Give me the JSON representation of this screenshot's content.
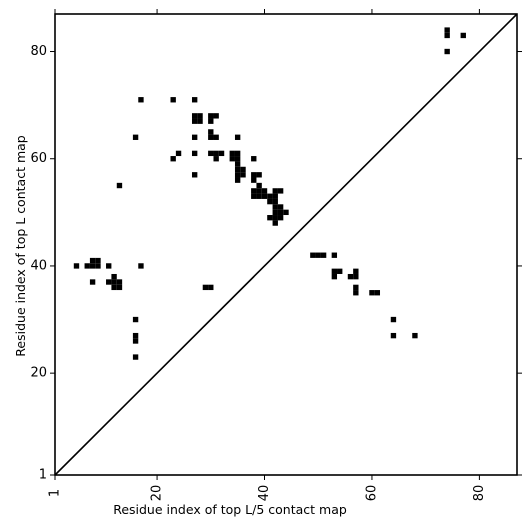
{
  "chart_data": {
    "type": "scatter",
    "title": "",
    "xlabel": "Residue index of top L/5 contact map",
    "ylabel": "Residue index of top L contact map",
    "xlim": [
      1,
      87
    ],
    "ylim": [
      1,
      87
    ],
    "xticks": [
      1,
      20,
      40,
      60,
      80
    ],
    "yticks": [
      1,
      20,
      40,
      60,
      80
    ],
    "grid": false,
    "marker": "square",
    "marker_color": "#000000",
    "diagonal_line": true,
    "points": [
      [
        74,
        84
      ],
      [
        77,
        83
      ],
      [
        74,
        83
      ],
      [
        74,
        80
      ],
      [
        17,
        71
      ],
      [
        23,
        71
      ],
      [
        27,
        71
      ],
      [
        27,
        68
      ],
      [
        28,
        68
      ],
      [
        30,
        68
      ],
      [
        31,
        68
      ],
      [
        27,
        67
      ],
      [
        28,
        67
      ],
      [
        30,
        67
      ],
      [
        16,
        64
      ],
      [
        27,
        64
      ],
      [
        30,
        65
      ],
      [
        30,
        64
      ],
      [
        31,
        64
      ],
      [
        35,
        64
      ],
      [
        27,
        61
      ],
      [
        30,
        61
      ],
      [
        31,
        61
      ],
      [
        32,
        61
      ],
      [
        34,
        61
      ],
      [
        35,
        61
      ],
      [
        24,
        61
      ],
      [
        23,
        60
      ],
      [
        31,
        60
      ],
      [
        34,
        60
      ],
      [
        35,
        60
      ],
      [
        38,
        60
      ],
      [
        35,
        59
      ],
      [
        35,
        58
      ],
      [
        36,
        58
      ],
      [
        35,
        57
      ],
      [
        36,
        57
      ],
      [
        38,
        57
      ],
      [
        39,
        57
      ],
      [
        27,
        57
      ],
      [
        35,
        56
      ],
      [
        38,
        56
      ],
      [
        13,
        55
      ],
      [
        39,
        55
      ],
      [
        38,
        54
      ],
      [
        39,
        54
      ],
      [
        40,
        54
      ],
      [
        42,
        54
      ],
      [
        43,
        54
      ],
      [
        38,
        53
      ],
      [
        39,
        53
      ],
      [
        40,
        53
      ],
      [
        41,
        53
      ],
      [
        42,
        53
      ],
      [
        41,
        52
      ],
      [
        42,
        52
      ],
      [
        42,
        51
      ],
      [
        43,
        51
      ],
      [
        42,
        50
      ],
      [
        43,
        50
      ],
      [
        44,
        50
      ],
      [
        41,
        49
      ],
      [
        42,
        49
      ],
      [
        43,
        49
      ],
      [
        42,
        48
      ],
      [
        49,
        42
      ],
      [
        50,
        42
      ],
      [
        51,
        42
      ],
      [
        53,
        42
      ],
      [
        8,
        41
      ],
      [
        9,
        41
      ],
      [
        5,
        40
      ],
      [
        7,
        40
      ],
      [
        8,
        40
      ],
      [
        9,
        40
      ],
      [
        11,
        40
      ],
      [
        17,
        40
      ],
      [
        53,
        39
      ],
      [
        54,
        39
      ],
      [
        57,
        39
      ],
      [
        53,
        38
      ],
      [
        56,
        38
      ],
      [
        57,
        38
      ],
      [
        12,
        38
      ],
      [
        8,
        37
      ],
      [
        11,
        37
      ],
      [
        12,
        37
      ],
      [
        13,
        37
      ],
      [
        12,
        36
      ],
      [
        13,
        36
      ],
      [
        29,
        36
      ],
      [
        30,
        36
      ],
      [
        57,
        36
      ],
      [
        57,
        35
      ],
      [
        60,
        35
      ],
      [
        61,
        35
      ],
      [
        16,
        30
      ],
      [
        64,
        30
      ],
      [
        16,
        27
      ],
      [
        64,
        27
      ],
      [
        68,
        27
      ],
      [
        16,
        26
      ],
      [
        16,
        23
      ]
    ]
  }
}
